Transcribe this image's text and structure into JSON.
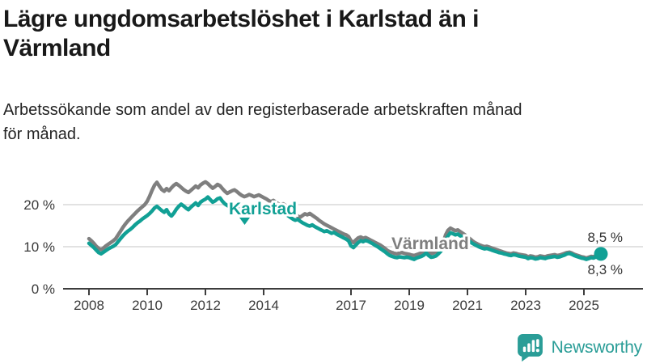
{
  "header": {
    "title_lines": [
      "Lägre ungdomsarbetslöshet i Karlstad än i",
      "Värmland"
    ],
    "subtitle_lines": [
      "Arbetssökande som andel av den registerbaserade arbetskraften månad",
      "för månad."
    ]
  },
  "chart_data": {
    "type": "line",
    "title": "Lägre ungdomsarbetslöshet i Karlstad än i Värmland",
    "subtitle": "Arbetssökande som andel av den registerbaserade arbetskraften månad för månad.",
    "unit": "%",
    "frequency": "monthly",
    "x_start_year": 2008,
    "x_end": "2025-08",
    "x_ticks": [
      2008,
      2010,
      2012,
      2014,
      2017,
      2019,
      2021,
      2023,
      2025
    ],
    "y_ticks": [
      {
        "value": 0,
        "label": "0 %"
      },
      {
        "value": 10,
        "label": "10 %"
      },
      {
        "value": 20,
        "label": "20 %"
      }
    ],
    "ylim": [
      0,
      33
    ],
    "grid": "horizontal",
    "legend_position": "inline-labels",
    "series": [
      {
        "name": "Karlstad",
        "color": "#11a095",
        "last_value_label": "8,3 %",
        "end_marker": "dot",
        "values": [
          10.8,
          10.3,
          9.8,
          9.2,
          8.6,
          8.3,
          8.7,
          9.1,
          9.5,
          9.8,
          10.1,
          10.5,
          11.2,
          11.9,
          12.6,
          13.2,
          13.7,
          14.1,
          14.6,
          15.2,
          15.7,
          16.1,
          16.6,
          17.0,
          17.4,
          17.9,
          18.5,
          19.2,
          19.6,
          19.1,
          18.6,
          18.2,
          18.8,
          17.8,
          17.3,
          18.0,
          18.9,
          19.6,
          20.1,
          19.7,
          19.2,
          18.8,
          19.4,
          19.9,
          20.4,
          19.8,
          20.6,
          21.0,
          21.3,
          21.8,
          21.2,
          20.6,
          20.9,
          21.4,
          21.6,
          20.8,
          20.2,
          19.8,
          19.5,
          19.9,
          20.2,
          19.8,
          19.3,
          19.0,
          18.7,
          18.9,
          19.3,
          19.0,
          18.6,
          18.9,
          19.2,
          19.5,
          19.8,
          19.4,
          18.9,
          18.5,
          18.8,
          18.4,
          18.0,
          17.7,
          18.1,
          17.8,
          17.4,
          17.0,
          16.6,
          16.3,
          16.5,
          16.1,
          15.7,
          15.4,
          15.1,
          14.9,
          15.2,
          14.8,
          14.5,
          14.2,
          13.9,
          13.6,
          13.8,
          13.5,
          13.2,
          13.4,
          13.0,
          12.7,
          12.4,
          12.1,
          11.8,
          11.4,
          10.2,
          9.8,
          10.4,
          11.0,
          11.4,
          11.2,
          11.5,
          11.3,
          11.0,
          10.7,
          10.3,
          10.0,
          9.6,
          9.2,
          8.8,
          8.3,
          7.9,
          7.7,
          7.5,
          7.4,
          7.6,
          7.5,
          7.4,
          7.5,
          7.4,
          7.2,
          7.0,
          7.3,
          7.5,
          7.7,
          8.0,
          8.5,
          7.9,
          7.5,
          7.6,
          7.8,
          8.3,
          8.9,
          9.8,
          11.5,
          12.6,
          13.3,
          13.1,
          12.8,
          13.0,
          12.6,
          12.3,
          12.0,
          11.6,
          11.2,
          10.8,
          10.5,
          10.2,
          9.9,
          9.7,
          9.5,
          9.6,
          9.4,
          9.2,
          9.0,
          8.8,
          8.6,
          8.5,
          8.3,
          8.2,
          8.0,
          7.9,
          8.1,
          8.0,
          7.8,
          7.7,
          7.6,
          7.5,
          7.2,
          7.4,
          7.3,
          7.1,
          7.2,
          7.4,
          7.3,
          7.2,
          7.4,
          7.5,
          7.6,
          7.7,
          7.5,
          7.6,
          7.8,
          8.0,
          8.3,
          8.4,
          8.2,
          7.9,
          7.7,
          7.5,
          7.3,
          7.2,
          7.0,
          7.2,
          7.4,
          7.3,
          7.6,
          8.0,
          8.3
        ]
      },
      {
        "name": "Värmland",
        "color": "#7f7f7f",
        "last_value_label": "8,5 %",
        "end_marker": "none",
        "values": [
          11.9,
          11.4,
          10.8,
          10.1,
          9.6,
          9.3,
          9.7,
          10.2,
          10.6,
          11.0,
          11.4,
          11.9,
          12.8,
          13.7,
          14.6,
          15.4,
          16.1,
          16.7,
          17.3,
          17.9,
          18.5,
          19.0,
          19.5,
          20.0,
          20.8,
          22.0,
          23.4,
          24.6,
          25.3,
          24.4,
          23.6,
          23.2,
          23.8,
          23.3,
          24.0,
          24.6,
          25.0,
          24.6,
          24.1,
          23.6,
          23.2,
          22.9,
          23.4,
          23.9,
          24.4,
          24.0,
          24.7,
          25.1,
          25.4,
          25.0,
          24.4,
          23.9,
          24.3,
          24.8,
          24.5,
          23.8,
          23.2,
          22.7,
          23.0,
          23.3,
          23.5,
          23.1,
          22.6,
          22.2,
          21.9,
          22.1,
          22.4,
          22.2,
          21.9,
          22.1,
          22.3,
          22.0,
          21.7,
          21.4,
          21.0,
          20.7,
          21.0,
          20.6,
          20.2,
          19.9,
          20.2,
          19.8,
          19.3,
          18.8,
          18.2,
          17.7,
          17.3,
          17.0,
          17.4,
          17.8,
          17.6,
          17.9,
          17.5,
          17.1,
          16.7,
          16.2,
          15.8,
          15.4,
          15.1,
          14.8,
          14.5,
          14.2,
          13.9,
          13.6,
          13.3,
          13.0,
          12.8,
          12.4,
          11.4,
          11.0,
          11.6,
          12.1,
          12.3,
          12.0,
          12.2,
          11.9,
          11.6,
          11.3,
          11.0,
          10.7,
          10.4,
          10.0,
          9.6,
          9.1,
          8.8,
          8.6,
          8.4,
          8.3,
          8.5,
          8.6,
          8.4,
          8.3,
          8.2,
          8.0,
          7.9,
          8.1,
          8.3,
          8.5,
          8.7,
          9.0,
          8.6,
          8.4,
          8.5,
          8.8,
          9.4,
          10.0,
          11.0,
          12.8,
          13.9,
          14.4,
          14.1,
          13.8,
          14.0,
          13.6,
          13.2,
          12.8,
          12.3,
          11.9,
          11.4,
          11.0,
          10.7,
          10.4,
          10.2,
          10.0,
          10.1,
          9.9,
          9.7,
          9.5,
          9.3,
          9.1,
          8.9,
          8.7,
          8.5,
          8.4,
          8.3,
          8.5,
          8.4,
          8.2,
          8.1,
          8.0,
          7.9,
          7.6,
          7.8,
          7.7,
          7.5,
          7.6,
          7.8,
          7.7,
          7.6,
          7.8,
          7.9,
          8.0,
          8.1,
          7.9,
          8.0,
          8.2,
          8.4,
          8.6,
          8.7,
          8.5,
          8.2,
          8.0,
          7.8,
          7.6,
          7.5,
          7.3,
          7.5,
          7.7,
          7.6,
          7.9,
          8.2,
          8.5
        ]
      }
    ]
  },
  "branding": {
    "logo_text": "Newsworthy",
    "logo_icon": "bar-chart-speech-bubble-icon",
    "logo_color": "#2a9d97"
  },
  "colors": {
    "karlstad_line": "#11a095",
    "varmland_line": "#7f7f7f",
    "gridline": "#d9d9d9",
    "axis": "#3d3d3d",
    "tick_label": "#3a3a3a",
    "title": "#191919"
  }
}
